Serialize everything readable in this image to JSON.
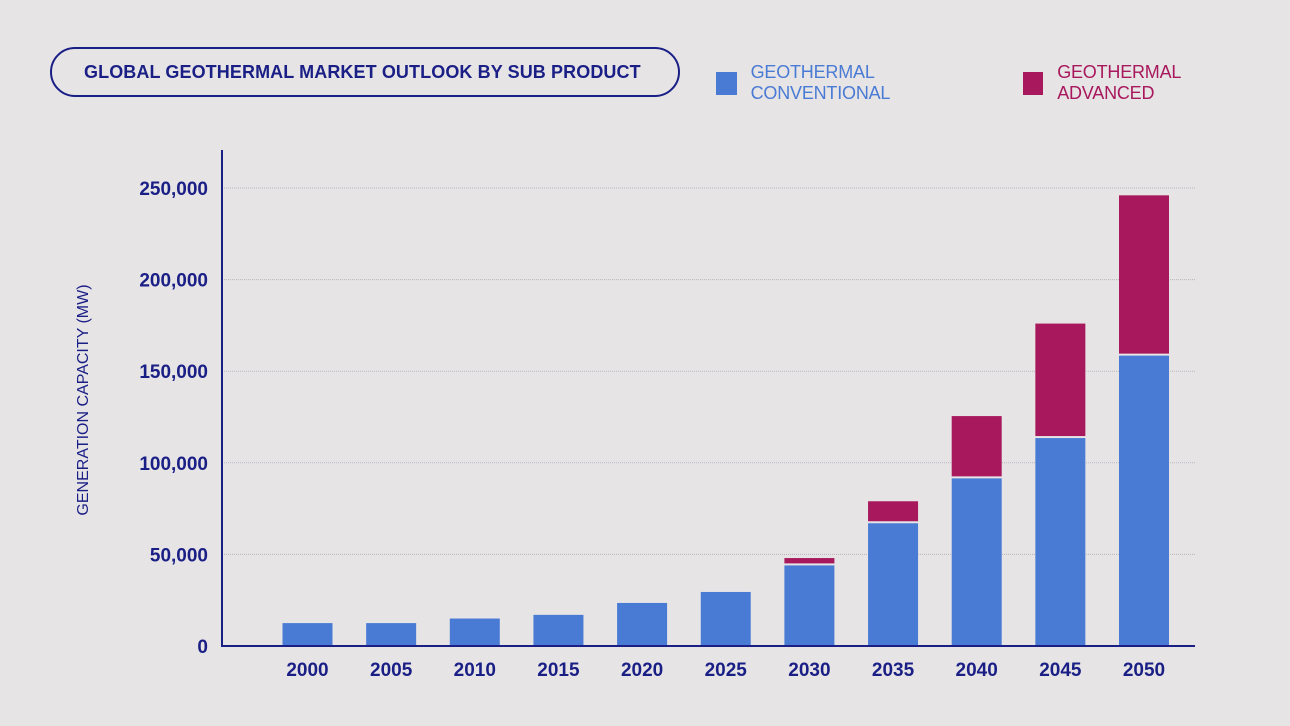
{
  "colors": {
    "conventional": "#4a7bd4",
    "advanced": "#a8185c",
    "axis": "#1a1f86",
    "grid": "#b5b3bd"
  },
  "chart_data": {
    "type": "bar",
    "stacked": true,
    "title": "GLOBAL GEOTHERMAL MARKET OUTLOOK BY SUB PRODUCT",
    "xlabel": "",
    "ylabel": "GENERATION CAPACITY (MW)",
    "ylim": [
      0,
      270000
    ],
    "yticks": [
      0,
      50000,
      100000,
      150000,
      200000,
      250000
    ],
    "ytick_labels": [
      "0",
      "50,000",
      "100,000",
      "150,000",
      "200,000",
      "250,000"
    ],
    "categories": [
      "2000",
      "2005",
      "2010",
      "2015",
      "2020",
      "2025",
      "2030",
      "2035",
      "2040",
      "2045",
      "2050"
    ],
    "legend_position": "top-right",
    "series": [
      {
        "name": "GEOTHERMAL CONVENTIONAL",
        "color_key": "conventional",
        "values": [
          12500,
          12500,
          15000,
          17000,
          23500,
          29500,
          44000,
          67000,
          91500,
          113500,
          158500
        ]
      },
      {
        "name": "GEOTHERMAL ADVANCED",
        "color_key": "advanced",
        "values": [
          0,
          0,
          0,
          0,
          0,
          0,
          4000,
          12000,
          34000,
          62500,
          87500
        ]
      }
    ]
  }
}
